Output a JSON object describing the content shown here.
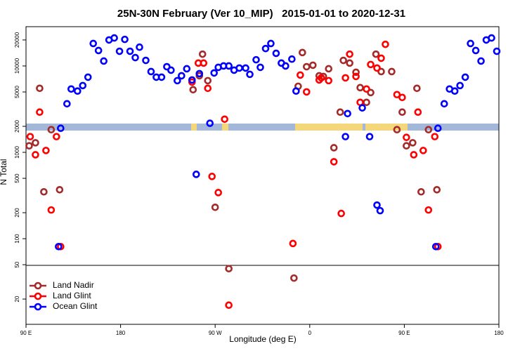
{
  "chart_data": {
    "type": "scatter",
    "title": "25N-30N February (Ver 10_MIP)   2015-01-01 to 2020-12-31",
    "x_label": "Longitude (deg E)",
    "y_label": "N Total",
    "log_y": true,
    "legend": "bottom-left",
    "xlim": [
      90,
      540
    ],
    "ylim": [
      10.2,
      28500
    ],
    "xticks": [
      {
        "value": 90,
        "label": "90 E"
      },
      180,
      {
        "value": 270,
        "label": "90 W"
      },
      {
        "value": 360,
        "label": "0"
      },
      {
        "value": 450,
        "label": "90 E"
      },
      {
        "value": 540,
        "label": "180"
      }
    ],
    "yticks": [
      20,
      50,
      100,
      200,
      500,
      1000,
      2000,
      5000,
      10000,
      20000
    ],
    "series": [
      {
        "name": "Land Nadir",
        "color": "#a52a2a",
        "x": [
          93,
          99,
          103,
          107,
          114,
          122,
          249,
          255,
          258,
          263,
          270,
          283,
          345,
          349,
          353,
          357,
          363,
          369,
          373,
          378,
          383,
          389,
          392,
          398,
          404,
          408,
          414,
          418,
          423,
          428,
          438,
          443,
          448,
          452,
          458,
          462,
          466,
          473,
          481
        ],
        "values": [
          1190,
          1290,
          5510,
          349,
          1830,
          369,
          5310,
          7700,
          13700,
          6760,
          231,
          45,
          35,
          5820,
          14300,
          9800,
          10200,
          7700,
          7560,
          9280,
          1130,
          2920,
          11600,
          10800,
          8460,
          5610,
          3790,
          4920,
          13700,
          8610,
          8610,
          1830,
          2920,
          1190,
          1290,
          5510,
          349,
          1830,
          369
        ]
      },
      {
        "name": "Land Glint",
        "color": "#ff0000",
        "x": [
          94,
          99,
          103,
          109,
          114,
          119,
          123,
          248,
          254,
          259,
          263,
          267,
          273,
          279,
          283,
          344,
          351,
          357,
          369,
          371,
          378,
          383,
          390,
          394,
          398,
          404,
          408,
          414,
          418,
          424,
          428,
          432,
          443,
          448,
          452,
          459,
          463,
          468,
          473,
          479,
          482
        ],
        "values": [
          1520,
          937,
          2920,
          1050,
          215,
          1520,
          81,
          6510,
          10800,
          10800,
          5510,
          526,
          342,
          2420,
          17,
          88,
          7850,
          5010,
          6890,
          7280,
          6760,
          778,
          196,
          7280,
          13700,
          7560,
          3790,
          5410,
          10400,
          9460,
          12300,
          17800,
          4660,
          4320,
          1490,
          937,
          2920,
          1050,
          215,
          1520,
          81
        ]
      },
      {
        "name": "Ocean Glint",
        "color": "#0000ff",
        "x": [
          121,
          123,
          129,
          133,
          139,
          144,
          149,
          154,
          159,
          164,
          169,
          174,
          179,
          184,
          189,
          194,
          198,
          204,
          209,
          214,
          219,
          224,
          228,
          234,
          238,
          243,
          248,
          252,
          255,
          265,
          269,
          273,
          278,
          283,
          288,
          293,
          299,
          303,
          309,
          313,
          318,
          323,
          328,
          333,
          337,
          343,
          347,
          394,
          396,
          410,
          417,
          424,
          427,
          480,
          482,
          488,
          493,
          498,
          503,
          508,
          513,
          518,
          523,
          528,
          533,
          538
        ],
        "values": [
          81,
          1900,
          3650,
          5410,
          5120,
          5930,
          7420,
          18200,
          15100,
          11400,
          20000,
          21100,
          14800,
          20300,
          14800,
          12500,
          16500,
          11600,
          8610,
          7420,
          7420,
          9800,
          8940,
          6760,
          7700,
          9280,
          6890,
          556,
          8150,
          2170,
          8300,
          9640,
          10000,
          10000,
          8940,
          9460,
          9460,
          8000,
          11800,
          9640,
          15900,
          18200,
          14000,
          10800,
          10000,
          12000,
          5120,
          1520,
          2810,
          3270,
          1520,
          245,
          211,
          81,
          1900,
          3650,
          5410,
          5120,
          5930,
          7420,
          18200,
          15100,
          11400,
          20000,
          21100,
          14800
        ]
      }
    ]
  }
}
